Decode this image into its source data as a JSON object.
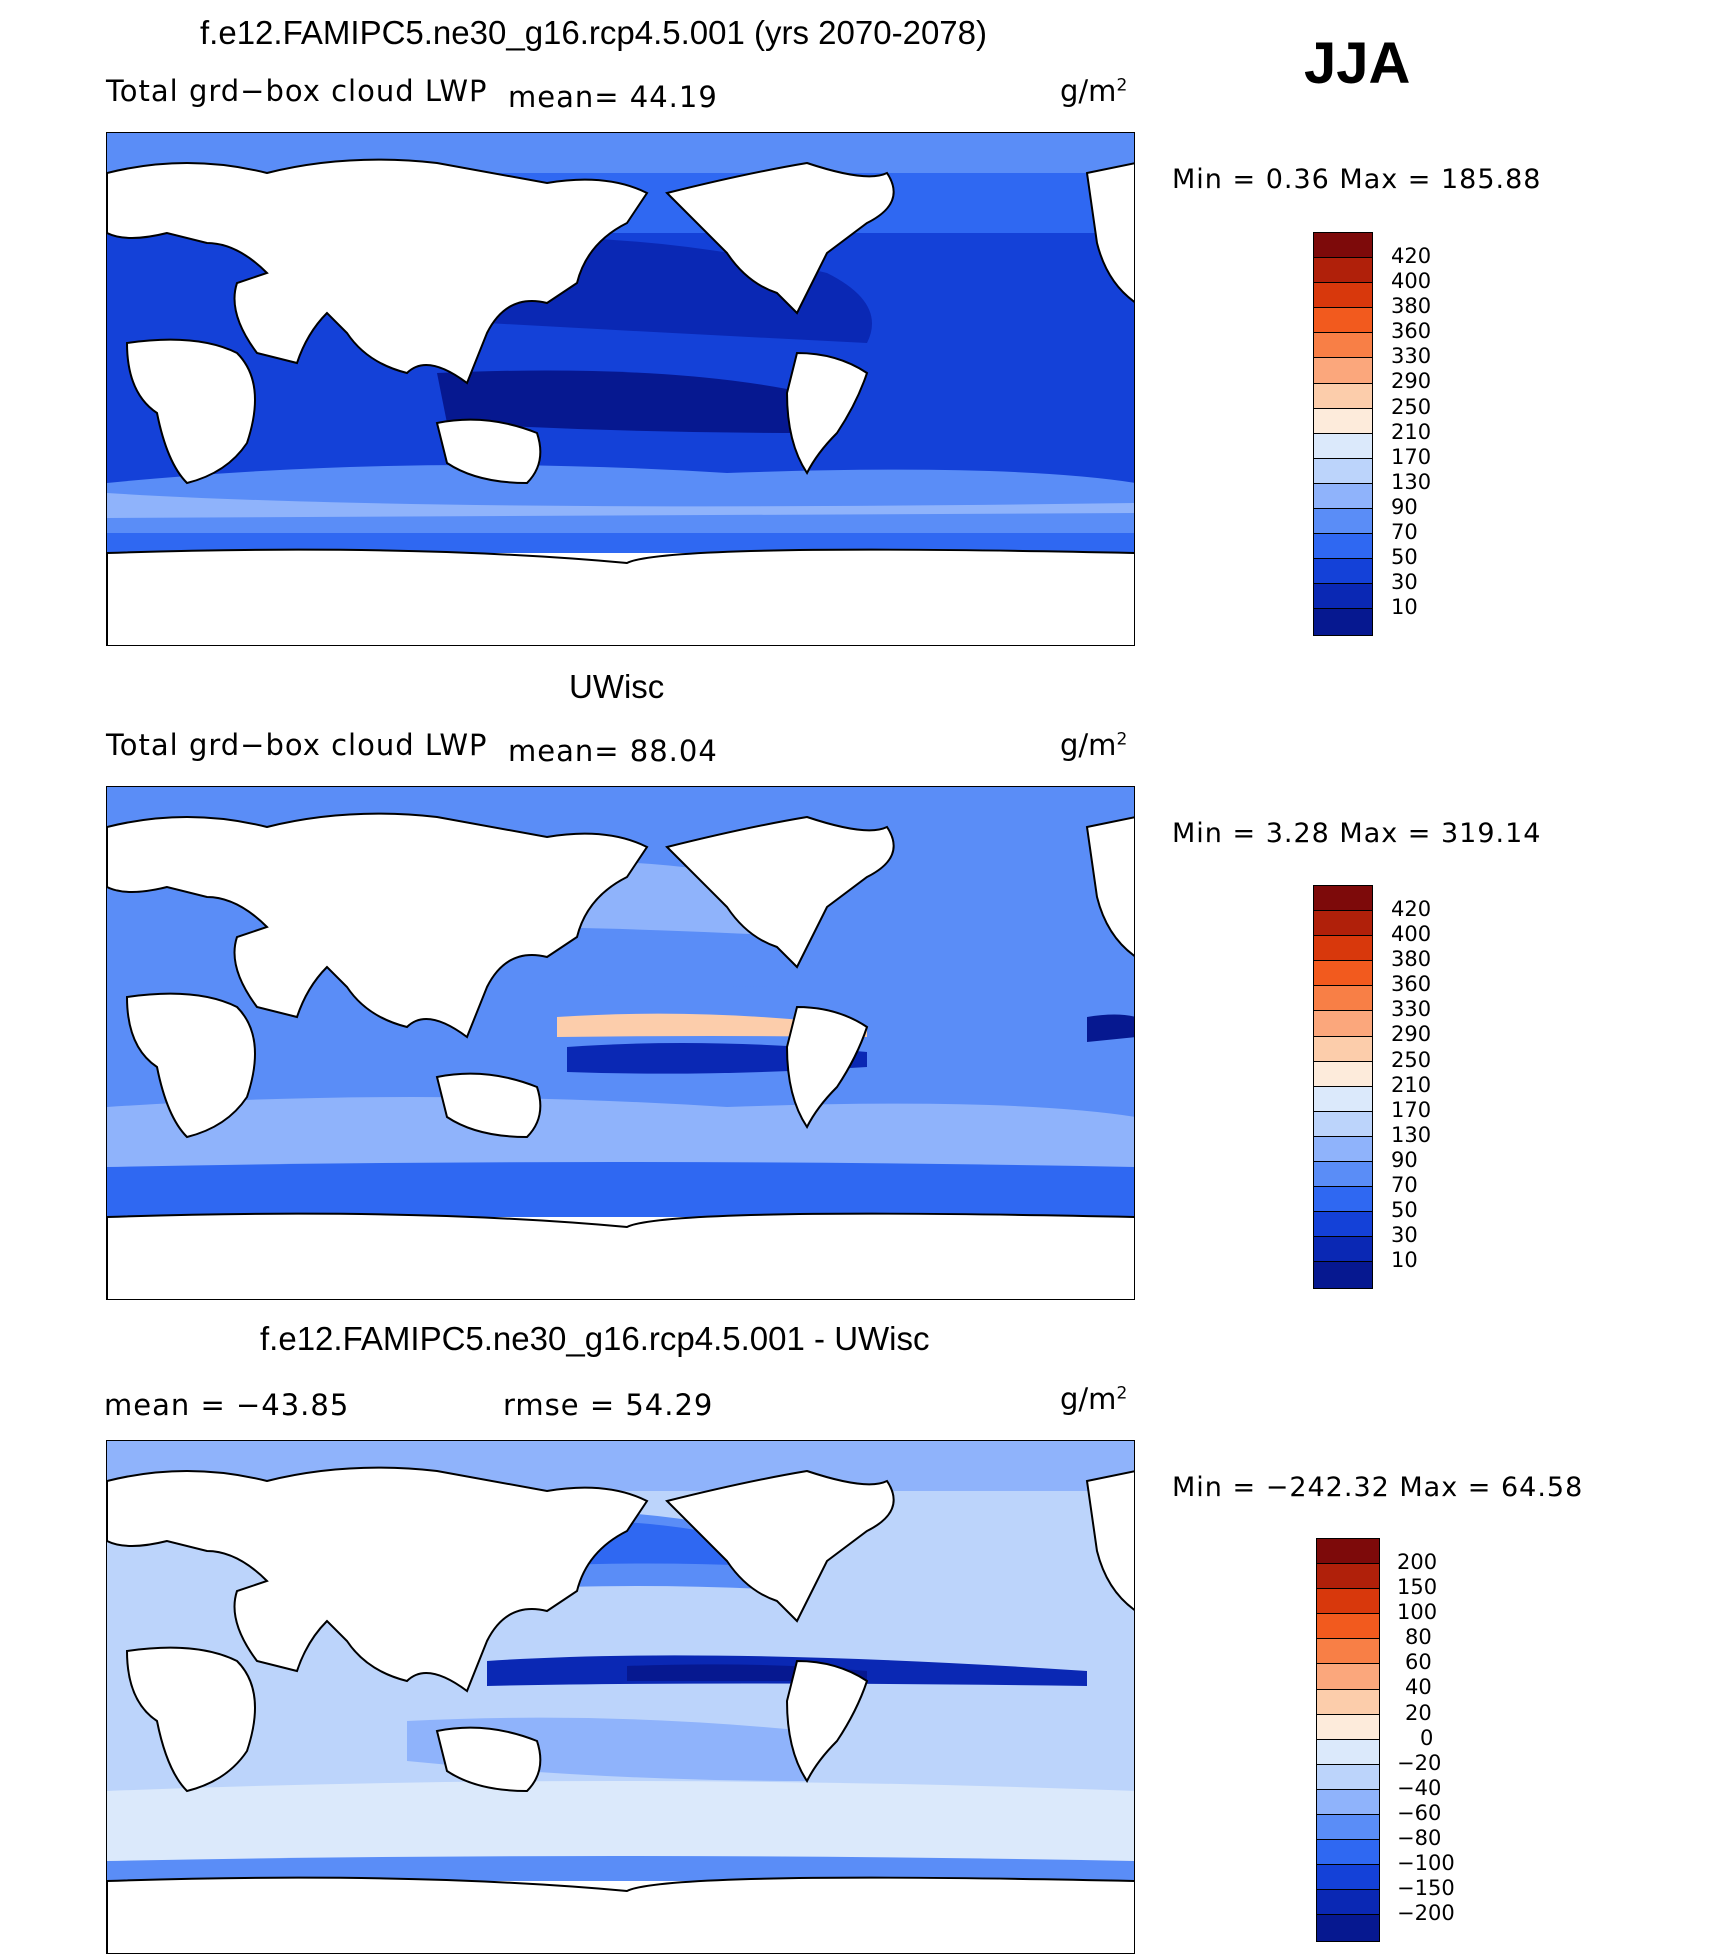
{
  "season": "JJA",
  "panels": [
    {
      "id": "model",
      "title": "f.e12.FAMIPC5.ne30_g16.rcp4.5.001 (yrs 2070-2078)",
      "variable": "Total grd−box cloud LWP",
      "mean_text": "mean=   44.19",
      "unit": "g/m",
      "unit_sup": "2",
      "minmax_text": "Min =    0.36  Max  =  185.88",
      "levels": [
        "420",
        "400",
        "380",
        "360",
        "330",
        "290",
        "250",
        "210",
        "170",
        "130",
        "90",
        "70",
        "50",
        "30",
        "10"
      ],
      "mean": 44.19,
      "min": 0.36,
      "max": 185.88
    },
    {
      "id": "obs",
      "title": "UWisc",
      "variable": "Total grd−box cloud LWP",
      "mean_text": "mean=   88.04",
      "unit": "g/m",
      "unit_sup": "2",
      "minmax_text": "Min =    3.28  Max  =  319.14",
      "levels": [
        "420",
        "400",
        "380",
        "360",
        "330",
        "290",
        "250",
        "210",
        "170",
        "130",
        "90",
        "70",
        "50",
        "30",
        "10"
      ],
      "mean": 88.04,
      "min": 3.28,
      "max": 319.14
    },
    {
      "id": "diff",
      "title": "f.e12.FAMIPC5.ne30_g16.rcp4.5.001 - UWisc",
      "mean_text": "mean  =  −43.85",
      "rmse_text": "rmse  =    54.29",
      "unit": "g/m",
      "unit_sup": "2",
      "minmax_text": "Min  = −242.32  Max  =    64.58",
      "levels": [
        "200",
        "150",
        "100",
        "80",
        "60",
        "40",
        "20",
        "0",
        "−20",
        "−40",
        "−60",
        "−80",
        "−100",
        "−150",
        "−200"
      ],
      "mean": -43.85,
      "rmse": 54.29,
      "min": -242.32,
      "max": 64.58
    }
  ],
  "colors": {
    "abs_scale": [
      "#7d0a0a",
      "#b0200a",
      "#d8380c",
      "#f25a1e",
      "#f87f46",
      "#fba77c",
      "#fccdab",
      "#fdebdb",
      "#dbe9fb",
      "#bcd4fb",
      "#8fb3fb",
      "#5a8df7",
      "#2f68f2",
      "#1441d8",
      "#0a28b4",
      "#061890"
    ],
    "diff_scale": [
      "#7d0a0a",
      "#b0200a",
      "#d8380c",
      "#f25a1e",
      "#f87f46",
      "#fba77c",
      "#fccdab",
      "#fdebdb",
      "#dbe9fb",
      "#bcd4fb",
      "#8fb3fb",
      "#5a8df7",
      "#2f68f2",
      "#1441d8",
      "#0a28b4",
      "#061890"
    ]
  }
}
